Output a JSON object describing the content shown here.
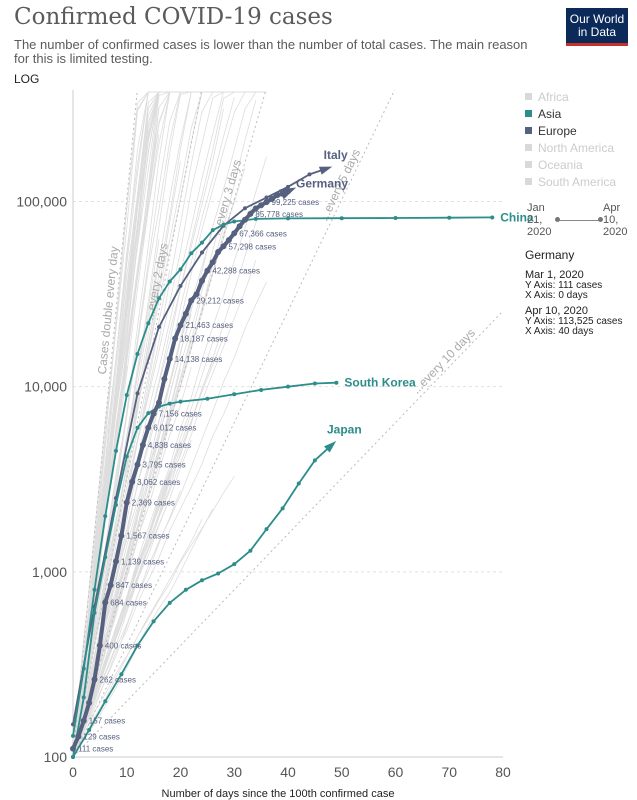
{
  "title": "Confirmed COVID-19 cases",
  "subtitle": "The number of confirmed cases is lower than the number of total cases. The main reason for this is limited testing.",
  "logo": {
    "line1": "Our World",
    "line2": "in Data"
  },
  "scale_toggle": "LOG",
  "legend": [
    {
      "label": "Africa",
      "color": "#d9d9d9",
      "active": false
    },
    {
      "label": "Asia",
      "color": "#2c8d8a",
      "active": true
    },
    {
      "label": "Europe",
      "color": "#56607f",
      "active": true
    },
    {
      "label": "North America",
      "color": "#d9d9d9",
      "active": false
    },
    {
      "label": "Oceania",
      "color": "#d9d9d9",
      "active": false
    },
    {
      "label": "South America",
      "color": "#d9d9d9",
      "active": false
    }
  ],
  "timeline": {
    "start": "Jan 21, 2020",
    "end": "Apr 10, 2020"
  },
  "info_panel": {
    "country": "Germany",
    "start_date": "Mar 1, 2020",
    "start_y": "Y Axis: 111 cases",
    "start_x": "X Axis: 0 days",
    "end_date": "Apr 10, 2020",
    "end_y": "Y Axis: 113,525 cases",
    "end_x": "X Axis: 40 days"
  },
  "colors": {
    "asia": "#2c8d8a",
    "europe": "#56607f",
    "background_lines": "#dddddd",
    "guides": "#bbbbbb"
  },
  "chart_data": {
    "type": "line",
    "xlabel": "Number of days since the 100th confirmed case",
    "ylabel": "",
    "y_scale": "log",
    "xlim": [
      0,
      80
    ],
    "ylim": [
      100,
      400000
    ],
    "x_ticks": [
      0,
      10,
      20,
      30,
      40,
      50,
      60,
      70,
      80
    ],
    "y_ticks": [
      {
        "value": 100,
        "label": "100"
      },
      {
        "value": 1000,
        "label": "1,000"
      },
      {
        "value": 10000,
        "label": "10,000"
      },
      {
        "value": 100000,
        "label": "100,000"
      }
    ],
    "guides": [
      {
        "label": "Cases double every day",
        "doubling_days": 1
      },
      {
        "label": "...every 2 days",
        "doubling_days": 2
      },
      {
        "label": "...every 3 days",
        "doubling_days": 3
      },
      {
        "label": "...every 5 days",
        "doubling_days": 5
      },
      {
        "label": "...every 10 days",
        "doubling_days": 10
      }
    ],
    "series": [
      {
        "name": "Italy",
        "group": "europe",
        "arrow": true,
        "x": [
          0,
          4,
          8,
          12,
          16,
          20,
          24,
          28,
          32,
          36,
          40,
          44,
          47
        ],
        "y": [
          150,
          650,
          2500,
          9200,
          21000,
          35000,
          53000,
          74000,
          92000,
          105000,
          120000,
          140000,
          150000
        ]
      },
      {
        "name": "Germany",
        "group": "europe",
        "highlight": true,
        "arrow": true,
        "x": [
          0,
          1,
          2,
          3,
          4,
          5,
          6,
          7,
          8,
          9,
          10,
          11,
          12,
          13,
          14,
          15,
          16,
          17,
          18,
          19,
          20,
          21,
          22,
          23,
          24,
          25,
          26,
          27,
          28,
          29,
          30,
          31,
          32,
          33,
          34,
          35,
          36,
          37,
          38,
          39,
          40
        ],
        "y": [
          111,
          129,
          157,
          196,
          262,
          400,
          684,
          847,
          1139,
          1567,
          2369,
          3062,
          3795,
          4838,
          6012,
          7156,
          8198,
          10999,
          14138,
          18187,
          21463,
          24774,
          29212,
          31554,
          37323,
          42288,
          46949,
          53340,
          57298,
          61913,
          67366,
          73522,
          79696,
          85778,
          91714,
          95391,
          99225,
          103228,
          108202,
          110032,
          113525
        ],
        "labels": [
          {
            "i": 0,
            "text": "111 cases"
          },
          {
            "i": 1,
            "text": "129 cases"
          },
          {
            "i": 2,
            "text": "157 cases"
          },
          {
            "i": 4,
            "text": "262 cases"
          },
          {
            "i": 5,
            "text": "400 cases"
          },
          {
            "i": 6,
            "text": "684 cases"
          },
          {
            "i": 7,
            "text": "847 cases"
          },
          {
            "i": 8,
            "text": "1,139 cases"
          },
          {
            "i": 9,
            "text": "1,567 cases"
          },
          {
            "i": 10,
            "text": "2,369 cases"
          },
          {
            "i": 11,
            "text": "3,062 cases"
          },
          {
            "i": 12,
            "text": "3,795 cases"
          },
          {
            "i": 13,
            "text": "4,838 cases"
          },
          {
            "i": 14,
            "text": "6,012 cases"
          },
          {
            "i": 15,
            "text": "7,156 cases"
          },
          {
            "i": 18,
            "text": "14,138 cases"
          },
          {
            "i": 19,
            "text": "18,187 cases"
          },
          {
            "i": 20,
            "text": "21,463 cases"
          },
          {
            "i": 22,
            "text": "29,212 cases"
          },
          {
            "i": 25,
            "text": "42,288 cases"
          },
          {
            "i": 28,
            "text": "57,298 cases"
          },
          {
            "i": 30,
            "text": "67,366 cases"
          },
          {
            "i": 33,
            "text": "85,778 cases"
          },
          {
            "i": 36,
            "text": "99,225 cases"
          }
        ]
      },
      {
        "name": "China",
        "group": "asia",
        "arrow": false,
        "x": [
          0,
          2,
          4,
          6,
          8,
          10,
          12,
          14,
          16,
          18,
          20,
          22,
          24,
          26,
          28,
          30,
          34,
          40,
          50,
          60,
          70,
          78
        ],
        "y": [
          130,
          300,
          800,
          2000,
          4500,
          9000,
          15000,
          22000,
          30000,
          37000,
          43000,
          52547,
          60000,
          70000,
          75000,
          78000,
          80500,
          81000,
          81200,
          81400,
          81700,
          82000
        ]
      },
      {
        "name": "South Korea",
        "group": "asia",
        "arrow": false,
        "x": [
          0,
          2,
          4,
          6,
          8,
          10,
          12,
          14,
          16,
          18,
          20,
          25,
          30,
          35,
          40,
          45,
          49
        ],
        "y": [
          100,
          210,
          600,
          1200,
          2300,
          4200,
          6000,
          7200,
          7800,
          8100,
          8300,
          8600,
          9100,
          9600,
          10000,
          10400,
          10500
        ]
      },
      {
        "name": "Japan",
        "group": "asia",
        "arrow": true,
        "x": [
          0,
          3,
          6,
          9,
          12,
          15,
          18,
          21,
          24,
          27,
          30,
          33,
          36,
          39,
          42,
          45,
          48
        ],
        "y": [
          100,
          140,
          200,
          280,
          400,
          540,
          680,
          800,
          900,
          980,
          1100,
          1300,
          1700,
          2200,
          3000,
          4000,
          4800
        ]
      }
    ]
  }
}
